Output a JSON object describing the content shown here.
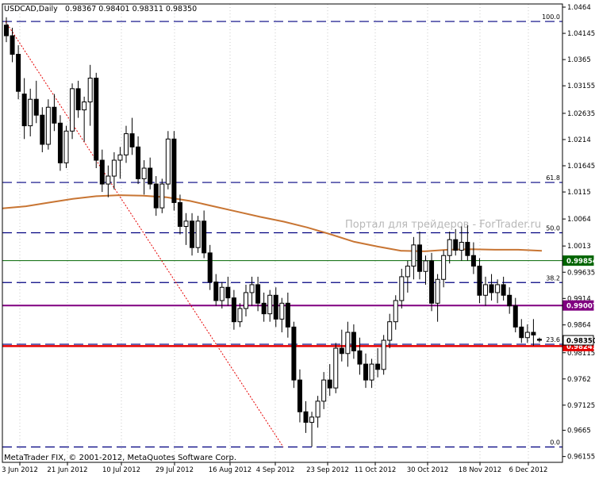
{
  "header": {
    "symbol_timeframe": "USDCAD,Daily",
    "ohlc": "0.98367 0.98401 0.98311 0.98350"
  },
  "footer": {
    "copyright": "MetaTrader FIX, © 2001-2012, MetaQuotes Software Corp."
  },
  "watermark": {
    "text": "Портал для трейдеров - ForTrader.ru"
  },
  "colors": {
    "background": "#ffffff",
    "candle_body_up": "#ffffff",
    "candle_body_down": "#000000",
    "moving_average": "#c87533",
    "fib_levels": "#000080",
    "line_support_green": "#006400",
    "line_purple": "#800080",
    "line_red": "#e60000",
    "trend_dotted": "#e60000"
  },
  "chart_data": {
    "type": "candlestick",
    "y_axis": {
      "ticks": [
        0.96155,
        0.9665,
        0.97125,
        0.9762,
        0.98115,
        0.9864,
        0.9914,
        0.99635,
        1.0013,
        1.0064,
        1.0115,
        1.01645,
        1.0214,
        1.02635,
        1.03155,
        1.0365,
        1.04145,
        1.0464
      ],
      "range": [
        0.96045,
        1.047
      ]
    },
    "x_axis": {
      "ticks": [
        "3 Jun 2012",
        "21 Jun 2012",
        "10 Jul 2012",
        "29 Jul 2012",
        "16 Aug 2012",
        "4 Sep 2012",
        "23 Sep 2012",
        "11 Oct 2012",
        "30 Oct 2012",
        "18 Nov 2012",
        "6 Dec 2012"
      ]
    },
    "fibonacci": {
      "levels": [
        {
          "label": "100.0",
          "price": 1.0437
        },
        {
          "label": "61.8",
          "price": 1.0133
        },
        {
          "label": "50.0",
          "price": 1.0038
        },
        {
          "label": "38.2",
          "price": 0.9944
        },
        {
          "label": "23.6",
          "price": 0.98275
        },
        {
          "label": "0.0",
          "price": 0.96335
        }
      ]
    },
    "horizontal_lines": [
      {
        "label": "0.99854",
        "price": 0.99854,
        "color": "#006400"
      },
      {
        "label": "0.99007",
        "price": 0.99007,
        "color": "#800080"
      },
      {
        "label": "0.98241",
        "price": 0.98241,
        "color": "#e60000"
      }
    ],
    "current_price_label": "0.98350",
    "trend_line": {
      "from": {
        "x": "4 Jun 2012",
        "price": 1.0437
      },
      "to": {
        "x": "7 Sep 2012",
        "price": 0.96335
      }
    },
    "moving_average": [
      1.0084,
      1.0088,
      1.0095,
      1.0102,
      1.0107,
      1.0109,
      1.0108,
      1.0105,
      1.0098,
      1.0088,
      1.0078,
      1.0068,
      1.0059,
      1.0048,
      1.0035,
      1.0021,
      1.0012,
      1.0004,
      1.0003,
      1.0006,
      1.0007,
      1.0006,
      1.0006,
      1.0004
    ],
    "candles": [
      {
        "o": 1.043,
        "h": 1.0445,
        "l": 1.0398,
        "c": 1.041
      },
      {
        "o": 1.041,
        "h": 1.0425,
        "l": 1.036,
        "c": 1.0375
      },
      {
        "o": 1.0375,
        "h": 1.0392,
        "l": 1.029,
        "c": 1.0305
      },
      {
        "o": 1.03,
        "h": 1.033,
        "l": 1.0215,
        "c": 1.024
      },
      {
        "o": 1.024,
        "h": 1.031,
        "l": 1.022,
        "c": 1.029
      },
      {
        "o": 1.029,
        "h": 1.0325,
        "l": 1.0245,
        "c": 1.026
      },
      {
        "o": 1.026,
        "h": 1.0275,
        "l": 1.019,
        "c": 1.0205
      },
      {
        "o": 1.0205,
        "h": 1.029,
        "l": 1.0195,
        "c": 1.0275
      },
      {
        "o": 1.0275,
        "h": 1.03,
        "l": 1.023,
        "c": 1.0245
      },
      {
        "o": 1.0245,
        "h": 1.026,
        "l": 1.0155,
        "c": 1.017
      },
      {
        "o": 1.017,
        "h": 1.024,
        "l": 1.016,
        "c": 1.023
      },
      {
        "o": 1.023,
        "h": 1.032,
        "l": 1.0215,
        "c": 1.031
      },
      {
        "o": 1.031,
        "h": 1.0325,
        "l": 1.0255,
        "c": 1.027
      },
      {
        "o": 1.027,
        "h": 1.0295,
        "l": 1.021,
        "c": 1.0285
      },
      {
        "o": 1.0285,
        "h": 1.0355,
        "l": 1.024,
        "c": 1.033
      },
      {
        "o": 1.033,
        "h": 1.034,
        "l": 1.016,
        "c": 1.0175
      },
      {
        "o": 1.0175,
        "h": 1.0195,
        "l": 1.0115,
        "c": 1.013
      },
      {
        "o": 1.013,
        "h": 1.0165,
        "l": 1.0105,
        "c": 1.0145
      },
      {
        "o": 1.0145,
        "h": 1.019,
        "l": 1.012,
        "c": 1.0175
      },
      {
        "o": 1.0175,
        "h": 1.02,
        "l": 1.014,
        "c": 1.0185
      },
      {
        "o": 1.0185,
        "h": 1.024,
        "l": 1.017,
        "c": 1.0225
      },
      {
        "o": 1.0225,
        "h": 1.0255,
        "l": 1.0185,
        "c": 1.02
      },
      {
        "o": 1.02,
        "h": 1.022,
        "l": 1.013,
        "c": 1.014
      },
      {
        "o": 1.014,
        "h": 1.0175,
        "l": 1.011,
        "c": 1.016
      },
      {
        "o": 1.016,
        "h": 1.018,
        "l": 1.012,
        "c": 1.013
      },
      {
        "o": 1.013,
        "h": 1.0145,
        "l": 1.007,
        "c": 1.0085
      },
      {
        "o": 1.0085,
        "h": 1.014,
        "l": 1.0075,
        "c": 1.013
      },
      {
        "o": 1.013,
        "h": 1.023,
        "l": 1.012,
        "c": 1.0215
      },
      {
        "o": 1.0215,
        "h": 1.023,
        "l": 1.008,
        "c": 1.0095
      },
      {
        "o": 1.0095,
        "h": 1.011,
        "l": 1.0035,
        "c": 1.005
      },
      {
        "o": 1.005,
        "h": 1.0075,
        "l": 1.0015,
        "c": 1.006
      },
      {
        "o": 1.006,
        "h": 1.0075,
        "l": 0.9995,
        "c": 1.001
      },
      {
        "o": 1.001,
        "h": 1.007,
        "l": 1.0,
        "c": 1.006
      },
      {
        "o": 1.006,
        "h": 1.008,
        "l": 0.999,
        "c": 1.0
      },
      {
        "o": 1.0,
        "h": 1.0015,
        "l": 0.993,
        "c": 0.9945
      },
      {
        "o": 0.9945,
        "h": 0.996,
        "l": 0.99,
        "c": 0.991
      },
      {
        "o": 0.991,
        "h": 0.9945,
        "l": 0.9895,
        "c": 0.9935
      },
      {
        "o": 0.9935,
        "h": 0.9955,
        "l": 0.99,
        "c": 0.9915
      },
      {
        "o": 0.9915,
        "h": 0.993,
        "l": 0.9855,
        "c": 0.987
      },
      {
        "o": 0.987,
        "h": 0.9905,
        "l": 0.986,
        "c": 0.9895
      },
      {
        "o": 0.9895,
        "h": 0.994,
        "l": 0.988,
        "c": 0.9925
      },
      {
        "o": 0.9925,
        "h": 0.9955,
        "l": 0.99,
        "c": 0.994
      },
      {
        "o": 0.994,
        "h": 0.9955,
        "l": 0.989,
        "c": 0.9905
      },
      {
        "o": 0.9905,
        "h": 0.9925,
        "l": 0.987,
        "c": 0.9885
      },
      {
        "o": 0.9885,
        "h": 0.993,
        "l": 0.987,
        "c": 0.992
      },
      {
        "o": 0.992,
        "h": 0.9935,
        "l": 0.986,
        "c": 0.9875
      },
      {
        "o": 0.9875,
        "h": 0.9915,
        "l": 0.985,
        "c": 0.9905
      },
      {
        "o": 0.9905,
        "h": 0.9925,
        "l": 0.984,
        "c": 0.986
      },
      {
        "o": 0.986,
        "h": 0.987,
        "l": 0.9745,
        "c": 0.976
      },
      {
        "o": 0.976,
        "h": 0.978,
        "l": 0.968,
        "c": 0.97
      },
      {
        "o": 0.97,
        "h": 0.972,
        "l": 0.966,
        "c": 0.968
      },
      {
        "o": 0.968,
        "h": 0.97,
        "l": 0.9634,
        "c": 0.969
      },
      {
        "o": 0.969,
        "h": 0.973,
        "l": 0.967,
        "c": 0.972
      },
      {
        "o": 0.972,
        "h": 0.9775,
        "l": 0.9705,
        "c": 0.976
      },
      {
        "o": 0.976,
        "h": 0.979,
        "l": 0.973,
        "c": 0.9745
      },
      {
        "o": 0.9745,
        "h": 0.983,
        "l": 0.9735,
        "c": 0.982
      },
      {
        "o": 0.982,
        "h": 0.9855,
        "l": 0.9795,
        "c": 0.981
      },
      {
        "o": 0.981,
        "h": 0.987,
        "l": 0.9785,
        "c": 0.985
      },
      {
        "o": 0.985,
        "h": 0.9865,
        "l": 0.98,
        "c": 0.9815
      },
      {
        "o": 0.9815,
        "h": 0.984,
        "l": 0.977,
        "c": 0.979
      },
      {
        "o": 0.979,
        "h": 0.981,
        "l": 0.9745,
        "c": 0.976
      },
      {
        "o": 0.976,
        "h": 0.98,
        "l": 0.9745,
        "c": 0.979
      },
      {
        "o": 0.979,
        "h": 0.982,
        "l": 0.9765,
        "c": 0.978
      },
      {
        "o": 0.978,
        "h": 0.9845,
        "l": 0.977,
        "c": 0.9835
      },
      {
        "o": 0.9835,
        "h": 0.9885,
        "l": 0.982,
        "c": 0.987
      },
      {
        "o": 0.987,
        "h": 0.992,
        "l": 0.9855,
        "c": 0.991
      },
      {
        "o": 0.991,
        "h": 0.997,
        "l": 0.9895,
        "c": 0.9955
      },
      {
        "o": 0.9955,
        "h": 0.9985,
        "l": 0.9925,
        "c": 0.9975
      },
      {
        "o": 0.9975,
        "h": 1.003,
        "l": 0.995,
        "c": 1.0015
      },
      {
        "o": 1.0015,
        "h": 1.004,
        "l": 0.995,
        "c": 0.9965
      },
      {
        "o": 0.9965,
        "h": 0.9995,
        "l": 0.994,
        "c": 0.9985
      },
      {
        "o": 0.9985,
        "h": 1.0,
        "l": 0.989,
        "c": 0.9905
      },
      {
        "o": 0.9905,
        "h": 0.996,
        "l": 0.987,
        "c": 0.995
      },
      {
        "o": 0.995,
        "h": 1.0005,
        "l": 0.9935,
        "c": 0.9995
      },
      {
        "o": 0.9995,
        "h": 1.004,
        "l": 0.998,
        "c": 1.0025
      },
      {
        "o": 1.0025,
        "h": 1.0045,
        "l": 0.9995,
        "c": 1.0005
      },
      {
        "o": 1.0005,
        "h": 1.005,
        "l": 0.9985,
        "c": 1.002
      },
      {
        "o": 1.002,
        "h": 1.0052,
        "l": 0.9985,
        "c": 0.9995
      },
      {
        "o": 0.9995,
        "h": 1.002,
        "l": 0.996,
        "c": 0.9975
      },
      {
        "o": 0.9975,
        "h": 0.999,
        "l": 0.9905,
        "c": 0.992
      },
      {
        "o": 0.992,
        "h": 0.9955,
        "l": 0.99,
        "c": 0.994
      },
      {
        "o": 0.994,
        "h": 0.996,
        "l": 0.991,
        "c": 0.9925
      },
      {
        "o": 0.9925,
        "h": 0.995,
        "l": 0.9905,
        "c": 0.994
      },
      {
        "o": 0.994,
        "h": 0.9955,
        "l": 0.991,
        "c": 0.992
      },
      {
        "o": 0.992,
        "h": 0.9935,
        "l": 0.9885,
        "c": 0.99
      },
      {
        "o": 0.99,
        "h": 0.9915,
        "l": 0.985,
        "c": 0.986
      },
      {
        "o": 0.986,
        "h": 0.9875,
        "l": 0.983,
        "c": 0.984
      },
      {
        "o": 0.984,
        "h": 0.9865,
        "l": 0.983,
        "c": 0.985
      },
      {
        "o": 0.985,
        "h": 0.9875,
        "l": 0.9825,
        "c": 0.9845
      },
      {
        "o": 0.9837,
        "h": 0.984,
        "l": 0.9831,
        "c": 0.9835
      }
    ]
  }
}
